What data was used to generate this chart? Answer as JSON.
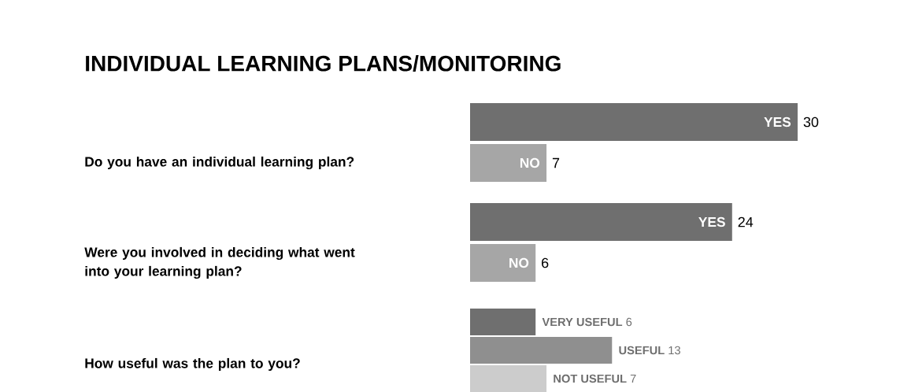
{
  "chart_data": [
    {
      "type": "bar",
      "orientation": "horizontal",
      "title": "INDIVIDUAL LEARNING PLANS/MONITORING",
      "ylabel": "Do you have an individual learning plan?",
      "categories": [
        "YES",
        "NO"
      ],
      "values": [
        30,
        7
      ],
      "colors": [
        "#6f6f6f",
        "#a6a6a6"
      ],
      "data_labels": true
    },
    {
      "type": "bar",
      "orientation": "horizontal",
      "ylabel": "Were you involved in deciding what went into your learning plan?",
      "categories": [
        "YES",
        "NO"
      ],
      "values": [
        24,
        6
      ],
      "colors": [
        "#6f6f6f",
        "#a6a6a6"
      ],
      "data_labels": true
    },
    {
      "type": "bar",
      "orientation": "horizontal",
      "ylabel": "How useful was the plan to you?",
      "categories": [
        null,
        null,
        null
      ],
      "values": [
        6,
        13,
        7
      ],
      "value_labels": [
        "**VERY USEFUL** 6",
        "**USEFUL** 13",
        "**NOT USEFUL** 7"
      ],
      "colors": [
        "#6f6f6f",
        "#8f8f8f",
        "#cccccc"
      ]
    }
  ]
}
